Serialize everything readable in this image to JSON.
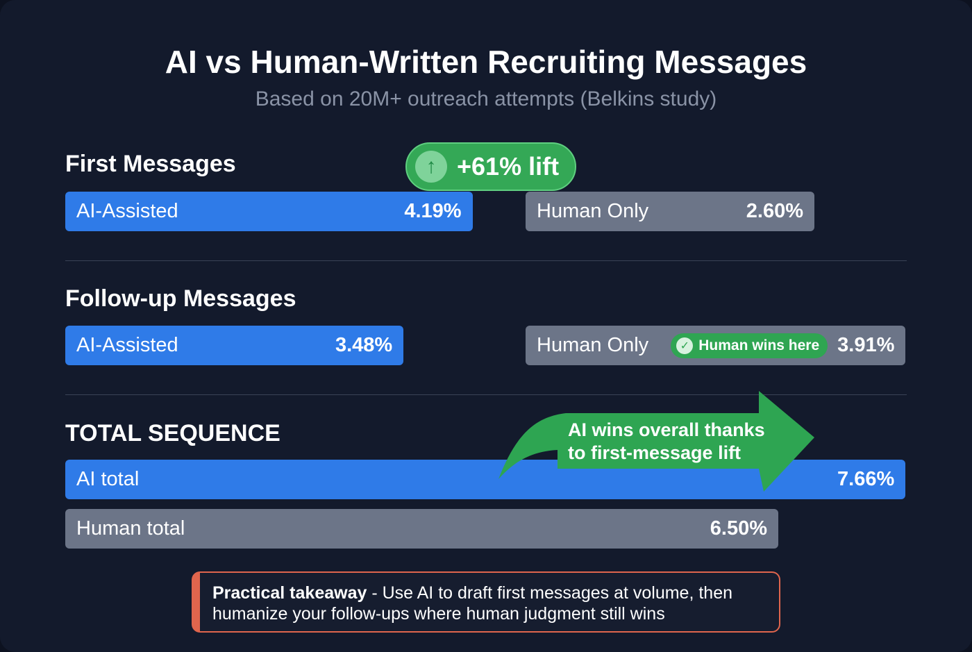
{
  "title": "AI vs Human-Written Recruiting Messages",
  "subtitle": "Based on 20M+ outreach attempts (Belkins study)",
  "colors": {
    "ai": "#2f7be8",
    "human": "#6c7588",
    "highlight": "#34a856",
    "takeaway_accent": "#e0654d",
    "background": "#131a2c"
  },
  "chart_data": {
    "type": "bar",
    "unit": "%",
    "groups": [
      {
        "title": "First Messages",
        "bars": [
          {
            "label": "AI-Assisted",
            "value": 4.19,
            "display": "4.19%"
          },
          {
            "label": "Human Only",
            "value": 2.6,
            "display": "2.60%"
          }
        ],
        "badge": {
          "text": "+61% lift",
          "icon": "arrow-up-icon"
        }
      },
      {
        "title": "Follow-up Messages",
        "bars": [
          {
            "label": "AI-Assisted",
            "value": 3.48,
            "display": "3.48%"
          },
          {
            "label": "Human Only",
            "value": 3.91,
            "display": "3.91%"
          }
        ],
        "badge": {
          "text": "Human wins here",
          "icon": "check-circle-icon"
        }
      },
      {
        "title": "TOTAL SEQUENCE",
        "bars": [
          {
            "label": "AI total",
            "value": 7.66,
            "display": "7.66%"
          },
          {
            "label": "Human total",
            "value": 6.5,
            "display": "6.50%"
          }
        ],
        "callout": "AI wins overall thanks to first-message lift"
      }
    ]
  },
  "takeaway": {
    "bold": "Practical takeaway",
    "text": " - Use AI to draft first messages at volume, then humanize your follow-ups where human judgment still wins"
  }
}
